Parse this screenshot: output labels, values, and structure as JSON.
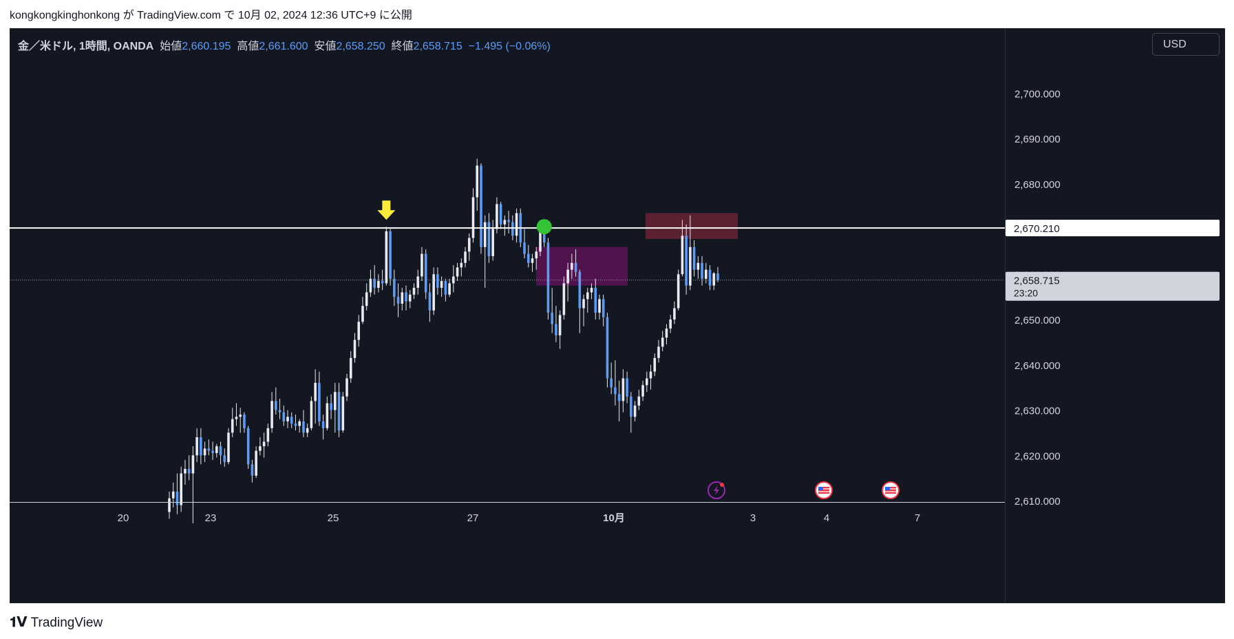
{
  "header": {
    "user": "kongkongkinghonkong",
    "ga": "が",
    "site": "TradingView.com",
    "de": "で",
    "datetime": "10月 02, 2024 12:36 UTC+9",
    "published": "に公開"
  },
  "legend": {
    "symbol": "金／米ドル, 1時間, OANDA",
    "open_label": "始値",
    "open": "2,660.195",
    "high_label": "高値",
    "high": "2,661.600",
    "low_label": "安値",
    "low": "2,658.250",
    "close_label": "終値",
    "close": "2,658.715",
    "change": "−1.495 (−0.06%)"
  },
  "currency_button": "USD",
  "footer": {
    "brand": "TradingView",
    "logo_icon": "tradingview-logo-icon"
  },
  "colors": {
    "background": "#131722",
    "candle": "#5b9cf6",
    "wick": "#e8eaf0",
    "price_line": "#ffffff",
    "supply_box": "#6d2436",
    "demand_box": "#5d1356",
    "arrow": "#ffeb3b",
    "circle": "#36c437"
  },
  "chart_data": {
    "type": "candlestick",
    "symbol": "金／米ドル",
    "timeframe": "1時間",
    "ylim": [
      2605,
      2710
    ],
    "y_ticks": [
      "2,610.000",
      "2,620.000",
      "2,630.000",
      "2,640.000",
      "2,650.000",
      "2,660.000",
      "2,670.000",
      "2,680.000",
      "2,690.000",
      "2,700.000"
    ],
    "x_ticks": [
      "20",
      "23",
      "25",
      "27",
      "10月",
      "3",
      "4",
      "7"
    ],
    "horizontal_line": {
      "price": 2670.21,
      "label": "2,670.210"
    },
    "last_price": {
      "price": 2658.715,
      "label": "2,658.715",
      "countdown": "23:20"
    },
    "zones": [
      {
        "name": "demand-zone",
        "from_day": "9月30日",
        "to_day": "10月1日",
        "price_low": 2657.5,
        "price_high": 2666.0
      },
      {
        "name": "supply-zone",
        "from_day": "10月1日",
        "to_day": "10月2日",
        "price_low": 2667.8,
        "price_high": 2673.5
      }
    ],
    "markers": [
      {
        "type": "arrow-down",
        "near_day": "9月25日",
        "price": 2670.5
      },
      {
        "type": "circle",
        "near_day": "9月30日",
        "price": 2670.5
      }
    ],
    "series": [
      {
        "values": [
          [
            2607.5,
            2612.0,
            2606.0,
            2610.5
          ],
          [
            2610.5,
            2614.0,
            2608.5,
            2612.0
          ],
          [
            2612.0,
            2616.0,
            2607.0,
            2609.0
          ],
          [
            2609.0,
            2617.5,
            2607.5,
            2616.0
          ],
          [
            2616.0,
            2619.0,
            2613.5,
            2617.0
          ],
          [
            2617.0,
            2620.0,
            2614.5,
            2616.0
          ],
          [
            2616.0,
            2622.0,
            2605.0,
            2620.0
          ],
          [
            2620.0,
            2626.0,
            2618.5,
            2624.0
          ],
          [
            2624.0,
            2626.0,
            2618.0,
            2620.0
          ],
          [
            2620.0,
            2623.0,
            2618.5,
            2621.5
          ],
          [
            2621.5,
            2623.5,
            2620.0,
            2621.0
          ],
          [
            2621.0,
            2623.0,
            2619.0,
            2620.5
          ],
          [
            2620.5,
            2622.5,
            2619.5,
            2622.0
          ],
          [
            2622.0,
            2623.0,
            2618.0,
            2620.0
          ],
          [
            2620.0,
            2621.5,
            2617.5,
            2618.5
          ],
          [
            2618.5,
            2626.0,
            2618.0,
            2625.0
          ],
          [
            2625.0,
            2630.5,
            2624.0,
            2628.0
          ],
          [
            2628.0,
            2631.5,
            2626.5,
            2628.5
          ],
          [
            2628.5,
            2630.5,
            2625.0,
            2629.0
          ],
          [
            2629.0,
            2629.5,
            2625.0,
            2626.0
          ],
          [
            2626.0,
            2626.5,
            2617.0,
            2618.0
          ],
          [
            2618.0,
            2619.0,
            2614.0,
            2615.5
          ],
          [
            2615.5,
            2622.0,
            2615.0,
            2621.0
          ],
          [
            2621.0,
            2624.0,
            2620.0,
            2622.0
          ],
          [
            2622.0,
            2625.0,
            2619.5,
            2623.0
          ],
          [
            2623.0,
            2627.0,
            2622.0,
            2626.0
          ],
          [
            2626.0,
            2634.0,
            2625.0,
            2632.0
          ],
          [
            2632.0,
            2635.0,
            2629.0,
            2630.0
          ],
          [
            2630.0,
            2632.5,
            2628.0,
            2629.5
          ],
          [
            2629.5,
            2631.0,
            2626.5,
            2627.5
          ],
          [
            2627.5,
            2630.0,
            2626.0,
            2628.5
          ],
          [
            2628.5,
            2629.5,
            2626.0,
            2627.0
          ],
          [
            2627.0,
            2629.0,
            2625.5,
            2626.5
          ],
          [
            2626.5,
            2628.0,
            2625.0,
            2627.5
          ],
          [
            2627.5,
            2630.0,
            2624.0,
            2625.0
          ],
          [
            2625.0,
            2627.0,
            2624.0,
            2626.0
          ],
          [
            2626.0,
            2633.0,
            2625.5,
            2632.0
          ],
          [
            2632.0,
            2639.0,
            2627.0,
            2636.0
          ],
          [
            2636.0,
            2638.5,
            2626.5,
            2627.5
          ],
          [
            2627.5,
            2629.0,
            2623.5,
            2626.0
          ],
          [
            2626.0,
            2633.0,
            2625.5,
            2631.5
          ],
          [
            2631.5,
            2633.5,
            2628.0,
            2630.0
          ],
          [
            2630.0,
            2636.0,
            2625.0,
            2634.0
          ],
          [
            2634.0,
            2636.0,
            2624.0,
            2625.5
          ],
          [
            2625.5,
            2634.0,
            2625.0,
            2633.0
          ],
          [
            2633.0,
            2638.0,
            2632.0,
            2637.0
          ],
          [
            2637.0,
            2643.0,
            2636.0,
            2641.5
          ],
          [
            2641.5,
            2647.0,
            2640.5,
            2645.5
          ],
          [
            2645.5,
            2651.0,
            2644.0,
            2649.5
          ],
          [
            2649.5,
            2655.0,
            2649.0,
            2653.0
          ],
          [
            2653.0,
            2658.0,
            2652.0,
            2656.0
          ],
          [
            2656.0,
            2661.0,
            2655.0,
            2659.0
          ],
          [
            2659.0,
            2662.0,
            2655.5,
            2657.0
          ],
          [
            2657.0,
            2660.0,
            2656.0,
            2658.5
          ],
          [
            2658.5,
            2661.0,
            2656.5,
            2658.0
          ],
          [
            2658.0,
            2670.5,
            2657.5,
            2669.5
          ],
          [
            2669.5,
            2670.0,
            2657.5,
            2659.0
          ],
          [
            2659.0,
            2661.0,
            2653.0,
            2655.0
          ],
          [
            2655.0,
            2658.0,
            2650.5,
            2653.5
          ],
          [
            2653.5,
            2657.0,
            2652.0,
            2656.0
          ],
          [
            2656.0,
            2657.5,
            2652.0,
            2654.0
          ],
          [
            2654.0,
            2656.5,
            2652.5,
            2655.5
          ],
          [
            2655.5,
            2658.0,
            2654.5,
            2657.0
          ],
          [
            2657.0,
            2661.0,
            2655.5,
            2659.5
          ],
          [
            2659.5,
            2666.0,
            2658.5,
            2664.5
          ],
          [
            2664.5,
            2665.5,
            2654.5,
            2656.0
          ],
          [
            2656.0,
            2658.0,
            2649.5,
            2652.0
          ],
          [
            2652.0,
            2661.5,
            2651.0,
            2660.0
          ],
          [
            2660.0,
            2661.5,
            2655.5,
            2657.0
          ],
          [
            2657.0,
            2659.5,
            2655.0,
            2658.5
          ],
          [
            2658.5,
            2659.0,
            2654.0,
            2655.5
          ],
          [
            2655.5,
            2659.0,
            2655.0,
            2658.0
          ],
          [
            2658.0,
            2662.0,
            2656.0,
            2659.5
          ],
          [
            2659.5,
            2662.5,
            2658.5,
            2661.5
          ],
          [
            2661.5,
            2663.5,
            2659.5,
            2662.5
          ],
          [
            2662.5,
            2666.0,
            2661.5,
            2665.0
          ],
          [
            2665.0,
            2669.0,
            2663.0,
            2668.0
          ],
          [
            2668.0,
            2679.0,
            2667.0,
            2677.0
          ],
          [
            2677.0,
            2685.5,
            2674.0,
            2684.0
          ],
          [
            2684.0,
            2684.5,
            2664.5,
            2666.0
          ],
          [
            2666.0,
            2673.0,
            2657.0,
            2671.5
          ],
          [
            2671.5,
            2673.5,
            2662.5,
            2664.0
          ],
          [
            2664.0,
            2672.0,
            2663.0,
            2670.0
          ],
          [
            2670.0,
            2677.0,
            2669.0,
            2675.5
          ],
          [
            2675.5,
            2676.0,
            2670.0,
            2671.0
          ],
          [
            2671.0,
            2673.0,
            2668.5,
            2672.0
          ],
          [
            2672.0,
            2674.0,
            2669.0,
            2671.5
          ],
          [
            2671.5,
            2673.0,
            2667.5,
            2668.5
          ],
          [
            2668.5,
            2674.5,
            2667.0,
            2673.5
          ],
          [
            2673.5,
            2674.5,
            2666.0,
            2667.0
          ],
          [
            2667.0,
            2670.0,
            2663.5,
            2664.5
          ],
          [
            2664.5,
            2666.5,
            2661.5,
            2662.5
          ],
          [
            2662.5,
            2664.5,
            2660.5,
            2663.5
          ],
          [
            2663.5,
            2666.0,
            2661.0,
            2665.0
          ],
          [
            2665.0,
            2671.5,
            2664.0,
            2670.0
          ],
          [
            2670.0,
            2672.0,
            2666.0,
            2667.0
          ],
          [
            2667.0,
            2668.0,
            2650.0,
            2651.5
          ],
          [
            2651.5,
            2657.0,
            2647.0,
            2649.0
          ],
          [
            2649.0,
            2653.0,
            2645.0,
            2646.5
          ],
          [
            2646.5,
            2652.0,
            2643.5,
            2651.0
          ],
          [
            2651.0,
            2659.5,
            2650.0,
            2658.0
          ],
          [
            2658.0,
            2662.5,
            2654.0,
            2661.0
          ],
          [
            2661.0,
            2664.5,
            2659.0,
            2662.5
          ],
          [
            2662.5,
            2665.5,
            2659.5,
            2660.5
          ],
          [
            2660.5,
            2661.0,
            2647.0,
            2652.5
          ],
          [
            2652.5,
            2655.5,
            2648.5,
            2654.5
          ],
          [
            2654.5,
            2657.0,
            2651.5,
            2656.0
          ],
          [
            2656.0,
            2658.0,
            2654.5,
            2657.0
          ],
          [
            2657.0,
            2659.0,
            2650.0,
            2651.5
          ],
          [
            2651.5,
            2655.5,
            2650.0,
            2654.5
          ],
          [
            2654.5,
            2655.5,
            2648.5,
            2650.5
          ],
          [
            2650.5,
            2651.5,
            2635.0,
            2637.0
          ],
          [
            2637.0,
            2640.5,
            2633.5,
            2635.0
          ],
          [
            2635.0,
            2641.0,
            2631.0,
            2633.5
          ],
          [
            2633.5,
            2636.5,
            2627.5,
            2632.0
          ],
          [
            2632.0,
            2639.0,
            2629.5,
            2637.0
          ],
          [
            2637.0,
            2638.5,
            2631.5,
            2633.0
          ],
          [
            2633.0,
            2634.0,
            2625.0,
            2628.5
          ],
          [
            2628.5,
            2632.0,
            2627.5,
            2631.0
          ],
          [
            2631.0,
            2634.5,
            2630.0,
            2633.0
          ],
          [
            2633.0,
            2636.5,
            2632.0,
            2635.5
          ],
          [
            2635.5,
            2638.5,
            2634.0,
            2637.0
          ],
          [
            2637.0,
            2640.0,
            2634.5,
            2638.5
          ],
          [
            2638.5,
            2642.5,
            2637.5,
            2641.5
          ],
          [
            2641.5,
            2645.5,
            2640.5,
            2644.0
          ],
          [
            2644.0,
            2647.5,
            2643.0,
            2646.0
          ],
          [
            2646.0,
            2649.0,
            2644.5,
            2648.0
          ],
          [
            2648.0,
            2651.0,
            2647.0,
            2650.0
          ],
          [
            2650.0,
            2654.0,
            2649.0,
            2652.5
          ],
          [
            2652.5,
            2661.0,
            2652.0,
            2660.0
          ],
          [
            2660.0,
            2672.0,
            2659.5,
            2668.5
          ],
          [
            2668.5,
            2671.0,
            2655.5,
            2657.5
          ],
          [
            2657.5,
            2673.0,
            2656.5,
            2666.0
          ],
          [
            2666.0,
            2667.5,
            2659.5,
            2661.0
          ],
          [
            2661.0,
            2664.0,
            2659.0,
            2662.5
          ],
          [
            2662.5,
            2664.0,
            2657.5,
            2659.0
          ],
          [
            2659.0,
            2662.5,
            2658.0,
            2661.0
          ],
          [
            2661.0,
            2662.0,
            2656.5,
            2657.5
          ],
          [
            2657.5,
            2660.5,
            2656.5,
            2660.2
          ],
          [
            2660.2,
            2661.6,
            2658.25,
            2658.715
          ]
        ]
      }
    ]
  }
}
